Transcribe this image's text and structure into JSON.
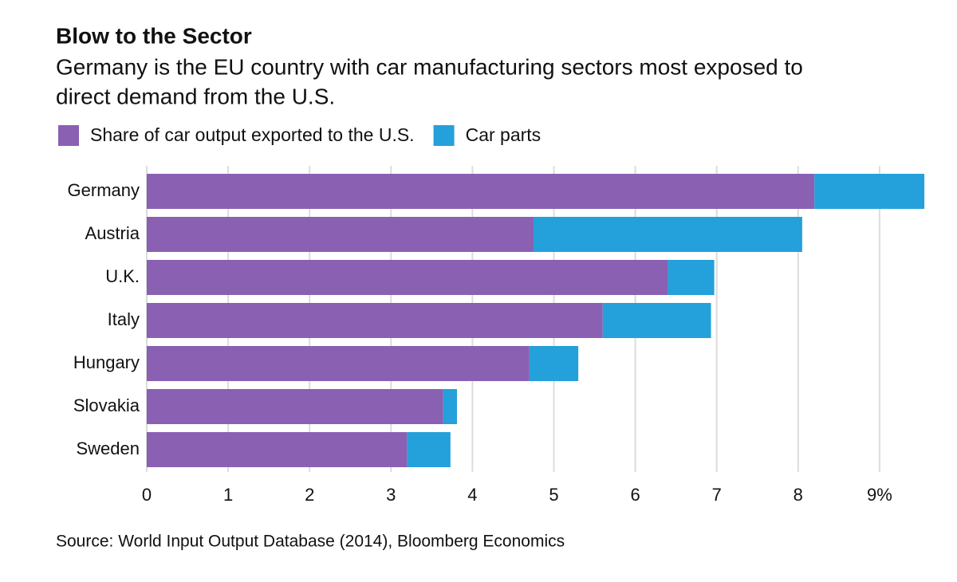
{
  "chart_data": {
    "type": "stacked_bar_horizontal",
    "title": "Blow to the Sector",
    "subtitle": [
      "Germany is the EU country with car manufacturing sectors most exposed to",
      "direct demand from the U.S."
    ],
    "categories": [
      "Germany",
      "Austria",
      "U.K.",
      "Italy",
      "Hungary",
      "Slovakia",
      "Sweden"
    ],
    "series": [
      {
        "name": "Share of car output exported to the U.S.",
        "color": "#8a60b3",
        "values": [
          8.2,
          4.75,
          6.4,
          5.6,
          4.7,
          3.64,
          3.2
        ]
      },
      {
        "name": "Car parts",
        "color": "#24a0da",
        "values": [
          1.35,
          3.3,
          0.57,
          1.33,
          0.6,
          0.17,
          0.53
        ]
      }
    ],
    "xlim": [
      0,
      9.6
    ],
    "xticks": [
      0,
      1,
      2,
      3,
      4,
      5,
      6,
      7,
      8,
      {
        "value": 9,
        "label": "9%"
      }
    ],
    "grid": true,
    "source": "Source: World Input Output Database (2014), Bloomberg Economics"
  }
}
